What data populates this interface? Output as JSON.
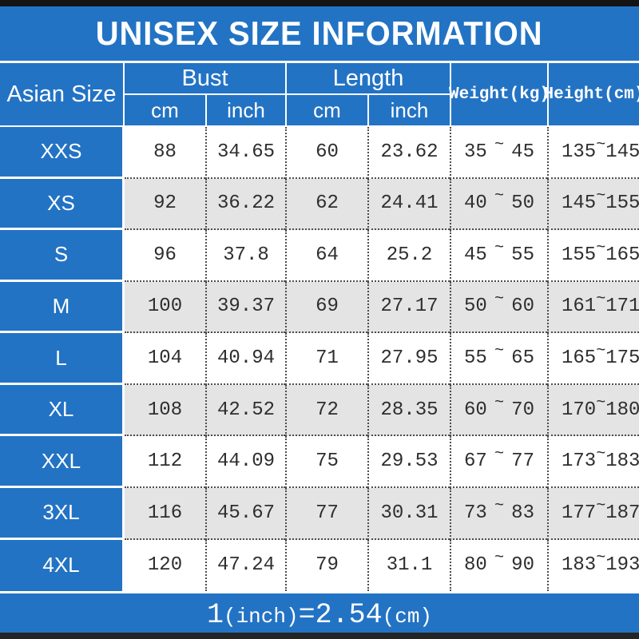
{
  "title": "UNISEX SIZE INFORMATION",
  "table": {
    "size_column_header": "Asian Size",
    "group_headers": {
      "bust": "Bust",
      "length": "Length",
      "weight": "Weight(kg)",
      "height": "Height(cm)"
    },
    "unit_headers": {
      "bust_cm": "cm",
      "bust_inch": "inch",
      "length_cm": "cm",
      "length_inch": "inch"
    },
    "rows": [
      {
        "size": "XXS",
        "bust_cm": "88",
        "bust_inch": "34.65",
        "length_cm": "60",
        "length_inch": "23.62",
        "weight_min": "35",
        "weight_max": "45",
        "height_min": "135",
        "height_max": "145"
      },
      {
        "size": "XS",
        "bust_cm": "92",
        "bust_inch": "36.22",
        "length_cm": "62",
        "length_inch": "24.41",
        "weight_min": "40",
        "weight_max": "50",
        "height_min": "145",
        "height_max": "155"
      },
      {
        "size": "S",
        "bust_cm": "96",
        "bust_inch": "37.8",
        "length_cm": "64",
        "length_inch": "25.2",
        "weight_min": "45",
        "weight_max": "55",
        "height_min": "155",
        "height_max": "165"
      },
      {
        "size": "M",
        "bust_cm": "100",
        "bust_inch": "39.37",
        "length_cm": "69",
        "length_inch": "27.17",
        "weight_min": "50",
        "weight_max": "60",
        "height_min": "161",
        "height_max": "171"
      },
      {
        "size": "L",
        "bust_cm": "104",
        "bust_inch": "40.94",
        "length_cm": "71",
        "length_inch": "27.95",
        "weight_min": "55",
        "weight_max": "65",
        "height_min": "165",
        "height_max": "175"
      },
      {
        "size": "XL",
        "bust_cm": "108",
        "bust_inch": "42.52",
        "length_cm": "72",
        "length_inch": "28.35",
        "weight_min": "60",
        "weight_max": "70",
        "height_min": "170",
        "height_max": "180"
      },
      {
        "size": "XXL",
        "bust_cm": "112",
        "bust_inch": "44.09",
        "length_cm": "75",
        "length_inch": "29.53",
        "weight_min": "67",
        "weight_max": "77",
        "height_min": "173",
        "height_max": "183"
      },
      {
        "size": "3XL",
        "bust_cm": "116",
        "bust_inch": "45.67",
        "length_cm": "77",
        "length_inch": "30.31",
        "weight_min": "73",
        "weight_max": "83",
        "height_min": "177",
        "height_max": "187"
      },
      {
        "size": "4XL",
        "bust_cm": "120",
        "bust_inch": "47.24",
        "length_cm": "79",
        "length_inch": "31.1",
        "weight_min": "80",
        "weight_max": "90",
        "height_min": "183",
        "height_max": "193"
      }
    ]
  },
  "symbols": {
    "tilde": "~"
  },
  "footer": {
    "value_one": "1",
    "unit_inch": "(inch)",
    "equals_value": "=2.54",
    "unit_cm": "(cm)"
  },
  "colors": {
    "accent_blue": "#2373c4",
    "alt_row_gray": "#e4e4e4",
    "bar_black": "#141414",
    "text_dark": "#2e2e2e"
  }
}
